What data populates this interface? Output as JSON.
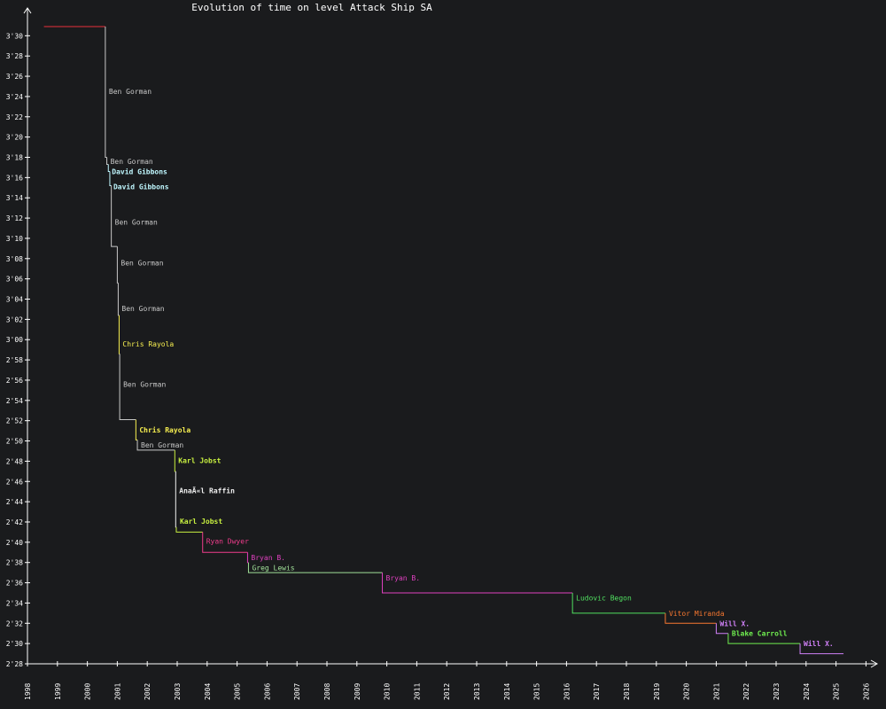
{
  "chart_data": {
    "type": "line",
    "title": "Evolution of time on level Attack Ship SA",
    "xlabel": "",
    "ylabel": "",
    "xlim": [
      1998.0,
      2026.6
    ],
    "ylim": [
      148,
      211.5
    ],
    "x_ticks": [
      "1998",
      "1999",
      "2000",
      "2001",
      "2002",
      "2003",
      "2004",
      "2005",
      "2006",
      "2007",
      "2008",
      "2009",
      "2010",
      "2011",
      "2012",
      "2013",
      "2014",
      "2015",
      "2016",
      "2017",
      "2018",
      "2019",
      "2020",
      "2021",
      "2022",
      "2023",
      "2024",
      "2025",
      "2026"
    ],
    "y_ticks": [
      {
        "value": 148,
        "label": "2'28"
      },
      {
        "value": 150,
        "label": "2'30"
      },
      {
        "value": 152,
        "label": "2'32"
      },
      {
        "value": 154,
        "label": "2'34"
      },
      {
        "value": 156,
        "label": "2'36"
      },
      {
        "value": 158,
        "label": "2'38"
      },
      {
        "value": 160,
        "label": "2'40"
      },
      {
        "value": 162,
        "label": "2'42"
      },
      {
        "value": 164,
        "label": "2'44"
      },
      {
        "value": 166,
        "label": "2'46"
      },
      {
        "value": 168,
        "label": "2'48"
      },
      {
        "value": 170,
        "label": "2'50"
      },
      {
        "value": 172,
        "label": "2'52"
      },
      {
        "value": 174,
        "label": "2'54"
      },
      {
        "value": 176,
        "label": "2'56"
      },
      {
        "value": 178,
        "label": "2'58"
      },
      {
        "value": 180,
        "label": "3'00"
      },
      {
        "value": 182,
        "label": "3'02"
      },
      {
        "value": 184,
        "label": "3'04"
      },
      {
        "value": 186,
        "label": "3'06"
      },
      {
        "value": 188,
        "label": "3'08"
      },
      {
        "value": 190,
        "label": "3'10"
      },
      {
        "value": 192,
        "label": "3'12"
      },
      {
        "value": 194,
        "label": "3'14"
      },
      {
        "value": 196,
        "label": "3'16"
      },
      {
        "value": 198,
        "label": "3'18"
      },
      {
        "value": 200,
        "label": "3'20"
      },
      {
        "value": 202,
        "label": "3'22"
      },
      {
        "value": 204,
        "label": "3'24"
      },
      {
        "value": 206,
        "label": "3'26"
      },
      {
        "value": 208,
        "label": "3'28"
      },
      {
        "value": 210,
        "label": "3'30"
      }
    ],
    "initial": {
      "x": 1998.55,
      "y": 210.9,
      "color": "#e8303a"
    },
    "end_x": 2025.25,
    "records": [
      {
        "x": 2000.6,
        "y": 198.0,
        "holder": "Ben Gorman",
        "color": "#c8c8c8",
        "bold": false,
        "label_y": 204.5
      },
      {
        "x": 2000.65,
        "y": 197.3,
        "holder": "Ben Gorman",
        "color": "#c8c8c8",
        "bold": false,
        "label_y": 197.6
      },
      {
        "x": 2000.7,
        "y": 196.6,
        "holder": "David Gibbons",
        "color": "#c0f8ff",
        "bold": true,
        "label_y": 196.6
      },
      {
        "x": 2000.75,
        "y": 195.2,
        "holder": "David Gibbons",
        "color": "#c0f8ff",
        "bold": true,
        "label_y": 195.1
      },
      {
        "x": 2000.8,
        "y": 189.2,
        "holder": "Ben Gorman",
        "color": "#c8c8c8",
        "bold": false,
        "label_y": 191.6
      },
      {
        "x": 2001.0,
        "y": 185.6,
        "holder": "Ben Gorman",
        "color": "#c8c8c8",
        "bold": false,
        "label_y": 187.6
      },
      {
        "x": 2001.03,
        "y": 182.4,
        "holder": "Ben Gorman",
        "color": "#c8c8c8",
        "bold": false,
        "label_y": 183.1
      },
      {
        "x": 2001.06,
        "y": 178.6,
        "holder": "Chris Rayola",
        "color": "#f8f050",
        "bold": false,
        "label_y": 179.6
      },
      {
        "x": 2001.08,
        "y": 172.1,
        "holder": "Ben Gorman",
        "color": "#c8c8c8",
        "bold": false,
        "label_y": 175.6
      },
      {
        "x": 2001.62,
        "y": 170.1,
        "holder": "Chris Rayola",
        "color": "#f8f050",
        "bold": true,
        "label_y": 171.1
      },
      {
        "x": 2001.67,
        "y": 169.1,
        "holder": "Ben Gorman",
        "color": "#c8c8c8",
        "bold": false,
        "label_y": 169.6
      },
      {
        "x": 2002.92,
        "y": 167.0,
        "holder": "Karl Jobst",
        "color": "#c8f040",
        "bold": true,
        "label_y": 168.1
      },
      {
        "x": 2002.95,
        "y": 161.5,
        "holder": "AnaÃ«l Raffin",
        "color": "#f0f0f0",
        "bold": true,
        "label_y": 165.1
      },
      {
        "x": 2002.97,
        "y": 161.0,
        "holder": "Karl Jobst",
        "color": "#c8f040",
        "bold": true,
        "label_y": 162.1
      },
      {
        "x": 2003.85,
        "y": 159.0,
        "holder": "Ryan Dwyer",
        "color": "#f03c8c",
        "bold": false,
        "label_y": 160.1
      },
      {
        "x": 2005.35,
        "y": 158.0,
        "holder": "Bryan B.",
        "color": "#e040c0",
        "bold": false,
        "label_y": 158.5
      },
      {
        "x": 2005.38,
        "y": 157.0,
        "holder": "Greg Lewis",
        "color": "#a0e098",
        "bold": false,
        "label_y": 157.5
      },
      {
        "x": 2009.85,
        "y": 155.0,
        "holder": "Bryan B.",
        "color": "#e040c0",
        "bold": false,
        "label_y": 156.5
      },
      {
        "x": 2016.2,
        "y": 153.0,
        "holder": "Ludovic Begon",
        "color": "#50e060",
        "bold": false,
        "label_y": 154.5
      },
      {
        "x": 2019.3,
        "y": 152.0,
        "holder": "Vitor Miranda",
        "color": "#f87830",
        "bold": false,
        "label_y": 153.0
      },
      {
        "x": 2021.0,
        "y": 151.0,
        "holder": "Will X.",
        "color": "#d080f8",
        "bold": true,
        "label_y": 152.0
      },
      {
        "x": 2021.4,
        "y": 150.0,
        "holder": "Blake Carroll",
        "color": "#70f050",
        "bold": true,
        "label_y": 151.0
      },
      {
        "x": 2023.8,
        "y": 149.0,
        "holder": "Will X.",
        "color": "#d080f8",
        "bold": true,
        "label_y": 150.0
      }
    ]
  }
}
